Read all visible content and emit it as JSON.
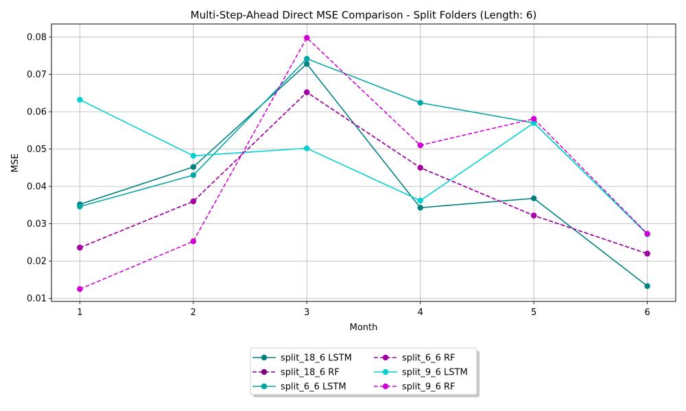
{
  "chart_data": {
    "type": "line",
    "title": "Multi-Step-Ahead Direct MSE Comparison - Split Folders (Length: 6)",
    "xlabel": "Month",
    "ylabel": "MSE",
    "x": [
      1,
      2,
      3,
      4,
      5,
      6
    ],
    "x_ticks": [
      "1",
      "2",
      "3",
      "4",
      "5",
      "6"
    ],
    "xlim": [
      0.75,
      6.25
    ],
    "ylim": [
      0.0092,
      0.0835
    ],
    "y_ticks": [
      "0.01",
      "0.02",
      "0.03",
      "0.04",
      "0.05",
      "0.06",
      "0.07",
      "0.08"
    ],
    "grid": true,
    "legend_position": "bottom-center",
    "series": [
      {
        "name": "split_18_6 LSTM",
        "color": "#008080",
        "dashed": false,
        "values": [
          0.0352,
          0.0452,
          0.0728,
          0.0343,
          0.0368,
          0.0133
        ]
      },
      {
        "name": "split_18_6 RF",
        "color": "#800080",
        "dashed": true,
        "values": [
          0.0236,
          0.036,
          0.0652,
          0.045,
          0.0322,
          0.022
        ]
      },
      {
        "name": "split_6_6 LSTM",
        "color": "#00a5a5",
        "dashed": false,
        "values": [
          0.0346,
          0.043,
          0.0742,
          0.0624,
          0.057,
          0.0272
        ]
      },
      {
        "name": "split_6_6 RF",
        "color": "#a500a5",
        "dashed": true,
        "values": [
          0.0236,
          0.036,
          0.0652,
          0.045,
          0.0322,
          0.022
        ]
      },
      {
        "name": "split_9_6 LSTM",
        "color": "#00d2d2",
        "dashed": false,
        "values": [
          0.0632,
          0.0482,
          0.0502,
          0.0362,
          0.057,
          0.0273
        ]
      },
      {
        "name": "split_9_6 RF",
        "color": "#d200d2",
        "dashed": true,
        "values": [
          0.0125,
          0.0253,
          0.0798,
          0.051,
          0.0581,
          0.0273
        ]
      }
    ]
  }
}
